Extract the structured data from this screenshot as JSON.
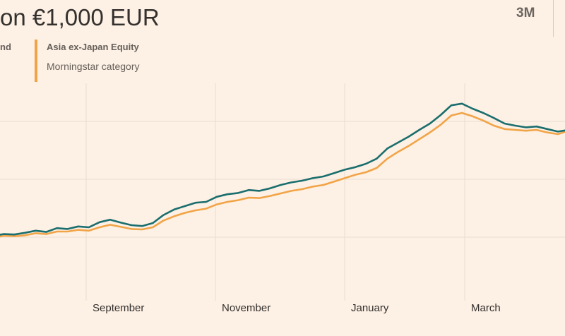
{
  "title": "on €1,000 EUR",
  "range_button": "3M",
  "legend": [
    {
      "name": "nd",
      "sub": "",
      "color": "#1a6e6e"
    },
    {
      "name": "Asia ex-Japan Equity",
      "sub": "Morningstar category",
      "color": "#f1a447"
    }
  ],
  "chart_data": {
    "type": "line",
    "x_tick_labels": [
      "September",
      "November",
      "January",
      "March"
    ],
    "grid": true,
    "series": [
      {
        "name": "nd",
        "color": "#1a6e6e",
        "values": [
          1040,
          1044,
          1043,
          1047,
          1052,
          1049,
          1058,
          1056,
          1062,
          1060,
          1072,
          1078,
          1071,
          1065,
          1063,
          1070,
          1089,
          1102,
          1110,
          1118,
          1120,
          1132,
          1138,
          1141,
          1148,
          1146,
          1152,
          1160,
          1166,
          1170,
          1176,
          1180,
          1188,
          1196,
          1202,
          1210,
          1222,
          1246,
          1260,
          1274,
          1290,
          1305,
          1325,
          1348,
          1352,
          1340,
          1330,
          1318,
          1305,
          1300,
          1296,
          1298,
          1292,
          1286,
          1290
        ]
      },
      {
        "name": "Asia ex-Japan Equity",
        "color": "#f1a447",
        "values": [
          1035,
          1040,
          1039,
          1041,
          1046,
          1044,
          1050,
          1050,
          1054,
          1052,
          1060,
          1066,
          1061,
          1056,
          1055,
          1060,
          1076,
          1086,
          1094,
          1100,
          1104,
          1114,
          1120,
          1124,
          1130,
          1129,
          1134,
          1140,
          1146,
          1150,
          1156,
          1160,
          1168,
          1176,
          1184,
          1190,
          1200,
          1222,
          1238,
          1252,
          1268,
          1284,
          1302,
          1324,
          1330,
          1322,
          1312,
          1300,
          1292,
          1290,
          1288,
          1290,
          1284,
          1280,
          1288
        ]
      }
    ]
  }
}
